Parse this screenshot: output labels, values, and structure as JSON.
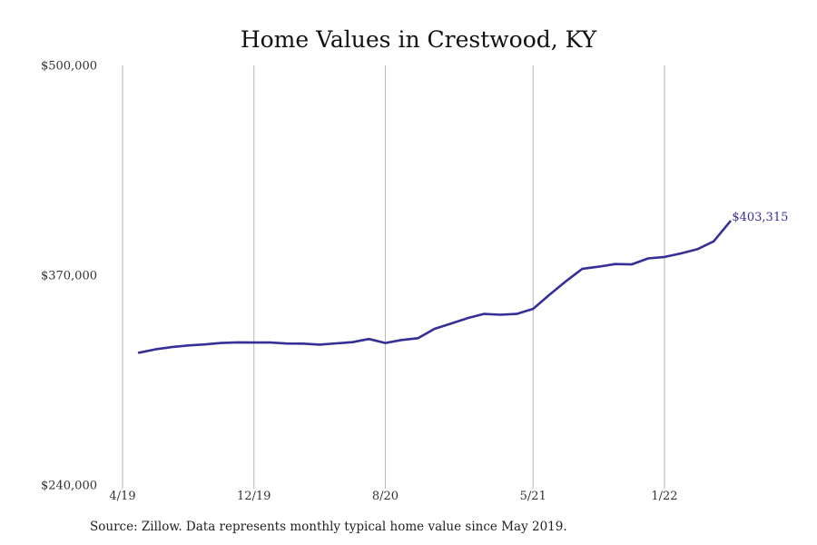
{
  "chart_data": {
    "type": "line",
    "title": "Home Values in Crestwood, KY",
    "xlabel": "",
    "ylabel": "",
    "ylim": [
      240000,
      500000
    ],
    "y_ticks": [
      240000,
      370000,
      500000
    ],
    "y_tick_labels": [
      "$240,000",
      "$370,000",
      "$500,000"
    ],
    "x_tick_labels": [
      "4/19",
      "12/19",
      "8/20",
      "5/21",
      "1/22"
    ],
    "grid": "vertical lines at x ticks",
    "series": [
      {
        "color": "#352f96",
        "x": [
          "2019-05",
          "2019-06",
          "2019-07",
          "2019-08",
          "2019-09",
          "2019-10",
          "2019-11",
          "2019-12",
          "2020-01",
          "2020-02",
          "2020-03",
          "2020-04",
          "2020-05",
          "2020-06",
          "2020-07",
          "2020-08",
          "2020-09",
          "2020-10",
          "2020-11",
          "2020-12",
          "2021-01",
          "2021-02",
          "2021-03",
          "2021-04",
          "2021-05",
          "2021-06",
          "2021-07",
          "2021-08",
          "2021-09",
          "2021-10",
          "2021-11",
          "2021-12",
          "2022-01",
          "2022-02",
          "2022-03",
          "2022-04",
          "2022-05"
        ],
        "values": [
          322000,
          324100,
          325500,
          326500,
          327100,
          328000,
          328400,
          328300,
          328300,
          327700,
          327600,
          327000,
          327800,
          328500,
          330500,
          328000,
          329900,
          331000,
          336800,
          340000,
          343400,
          346000,
          345500,
          346000,
          349200,
          357900,
          366300,
          374000,
          375300,
          376900,
          376700,
          380400,
          381300,
          383500,
          386100,
          391000,
          403315
        ]
      }
    ],
    "end_label": "$403,315"
  },
  "source": "Source: Zillow. Data represents monthly typical home value since May 2019."
}
